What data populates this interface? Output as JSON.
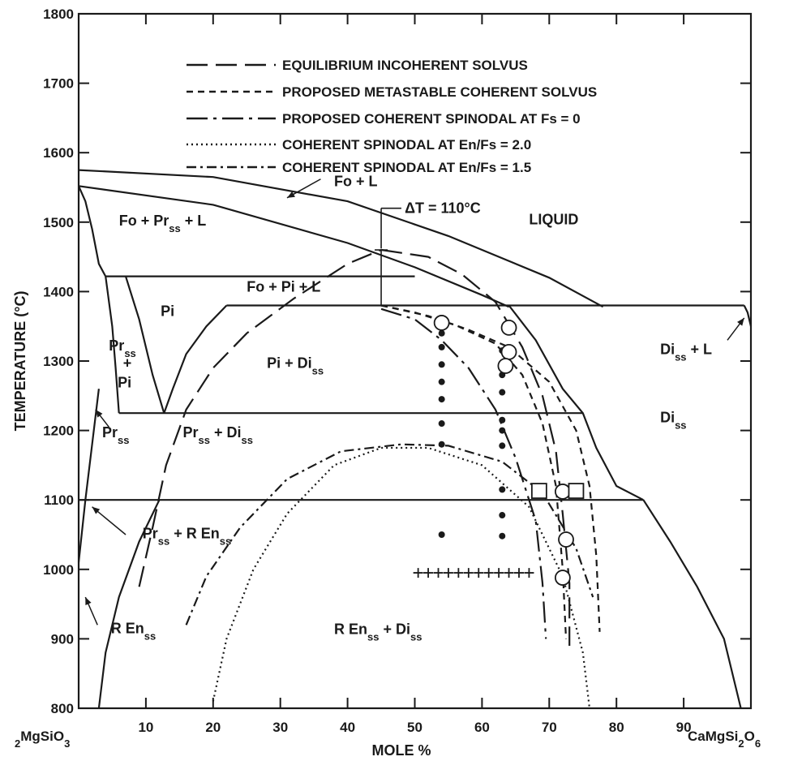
{
  "chart_data": {
    "type": "scatter",
    "title": "",
    "xlabel": "MOLE %",
    "ylabel": "TEMPERATURE (°C)",
    "xlim": [
      0,
      100
    ],
    "ylim": [
      800,
      1800
    ],
    "x_ticks": [
      10,
      20,
      30,
      40,
      50,
      60,
      70,
      80,
      90
    ],
    "y_ticks": [
      800,
      900,
      1000,
      1100,
      1200,
      1300,
      1400,
      1500,
      1600,
      1700,
      1800
    ],
    "x_end_left": "2MgSiO3",
    "x_end_right": "CaMgSi2O6",
    "legend": [
      {
        "label": "EQUILIBRIUM INCOHERENT SOLVUS",
        "style": "long-dash"
      },
      {
        "label": "PROPOSED METASTABLE COHERENT SOLVUS",
        "style": "short-dash"
      },
      {
        "label": "PROPOSED COHERENT SPINODAL AT Fs = 0",
        "style": "dash-dot-long"
      },
      {
        "label": "COHERENT SPINODAL AT En/Fs = 2.0",
        "style": "dotted"
      },
      {
        "label": "COHERENT SPINODAL AT En/Fs = 1.5",
        "style": "dash-dot"
      }
    ],
    "annotation_dT": "ΔT = 110°C",
    "region_labels": {
      "fo_l": "Fo + L",
      "fo_pr_l": "Fo + Prss + L",
      "liquid": "LIQUID",
      "fo_pi_l": "Fo + Pi + L",
      "pi": "Pi",
      "pr_pi_top": "Prss",
      "pr_pi_plus": "+",
      "pr_pi_bottom": "Pi",
      "pi_di": "Pi + Diss",
      "di_l": "Diss + L",
      "di": "Diss",
      "pr": "Prss",
      "pr_di": "Prss + Diss",
      "pr_ren": "Prss + R Enss",
      "ren": "R Enss",
      "ren_di": "R Enss + Diss"
    },
    "series": [
      {
        "marker": "filled-circle",
        "points": [
          [
            54,
            1340
          ],
          [
            54,
            1320
          ],
          [
            54,
            1295
          ],
          [
            54,
            1270
          ],
          [
            54,
            1245
          ],
          [
            54,
            1210
          ],
          [
            54,
            1180
          ],
          [
            54,
            1050
          ],
          [
            63,
            1315
          ],
          [
            63,
            1280
          ],
          [
            63,
            1255
          ],
          [
            63,
            1215
          ],
          [
            63,
            1200
          ],
          [
            63,
            1178
          ],
          [
            63,
            1115
          ],
          [
            63,
            1078
          ],
          [
            63,
            1048
          ]
        ]
      },
      {
        "marker": "open-circle",
        "points": [
          [
            54,
            1355
          ],
          [
            64,
            1348
          ],
          [
            64,
            1313
          ],
          [
            63.5,
            1293
          ],
          [
            72,
            1112
          ],
          [
            72.5,
            1043
          ],
          [
            72,
            988
          ]
        ]
      },
      {
        "marker": "open-square",
        "points": [
          [
            68.5,
            1113
          ],
          [
            74,
            1113
          ]
        ]
      },
      {
        "marker": "plus",
        "points": [
          [
            50.5,
            995
          ],
          [
            52,
            995
          ],
          [
            53.5,
            995
          ],
          [
            55,
            995
          ],
          [
            56.5,
            995
          ],
          [
            58,
            995
          ],
          [
            59.5,
            995
          ],
          [
            61,
            995
          ],
          [
            62.5,
            995
          ],
          [
            64,
            995
          ],
          [
            65.5,
            995
          ],
          [
            67,
            995
          ]
        ]
      }
    ]
  }
}
